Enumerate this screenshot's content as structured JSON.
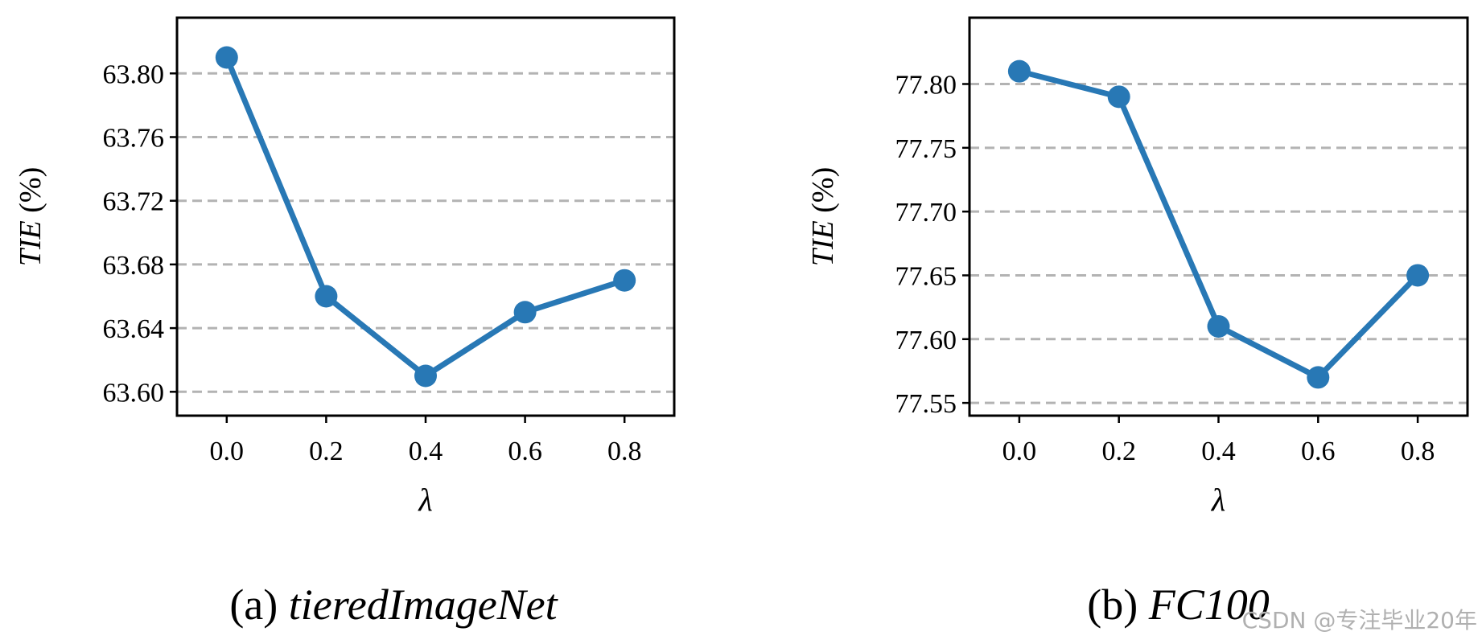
{
  "colors": {
    "series": "#2878b5",
    "grid": "#b3b3b3",
    "axis": "#000000"
  },
  "chart_data": [
    {
      "type": "line",
      "x": [
        0.0,
        0.2,
        0.4,
        0.6,
        0.8
      ],
      "series": [
        {
          "values": [
            63.81,
            63.66,
            63.61,
            63.65,
            63.67
          ]
        }
      ],
      "xticks": [
        0.0,
        0.2,
        0.4,
        0.6,
        0.8
      ],
      "xtick_labels": [
        "0.0",
        "0.2",
        "0.4",
        "0.6",
        "0.8"
      ],
      "yticks": [
        63.6,
        63.64,
        63.68,
        63.72,
        63.76,
        63.8
      ],
      "ytick_labels": [
        "63.60",
        "63.64",
        "63.68",
        "63.72",
        "63.76",
        "63.80"
      ],
      "xlim": [
        -0.1,
        0.9
      ],
      "ylim": [
        63.585,
        63.835
      ],
      "xlabel": "λ",
      "ylabel_main": "TIE",
      "ylabel_unit": " (%)",
      "grid": "horizontal dashed",
      "caption_prefix": "(a) ",
      "caption_name": "tieredImageNet"
    },
    {
      "type": "line",
      "x": [
        0.0,
        0.2,
        0.4,
        0.6,
        0.8
      ],
      "series": [
        {
          "values": [
            77.81,
            77.79,
            77.61,
            77.57,
            77.65
          ]
        }
      ],
      "xticks": [
        0.0,
        0.2,
        0.4,
        0.6,
        0.8
      ],
      "xtick_labels": [
        "0.0",
        "0.2",
        "0.4",
        "0.6",
        "0.8"
      ],
      "yticks": [
        77.55,
        77.6,
        77.65,
        77.7,
        77.75,
        77.8
      ],
      "ytick_labels": [
        "77.55",
        "77.60",
        "77.65",
        "77.70",
        "77.75",
        "77.80"
      ],
      "xlim": [
        -0.1,
        0.9
      ],
      "ylim": [
        77.54,
        77.852
      ],
      "xlabel": "λ",
      "ylabel_main": "TIE",
      "ylabel_unit": " (%)",
      "grid": "horizontal dashed",
      "caption_prefix": "(b) ",
      "caption_name": "FC100"
    }
  ],
  "watermark": "CSDN @专注毕业20年"
}
